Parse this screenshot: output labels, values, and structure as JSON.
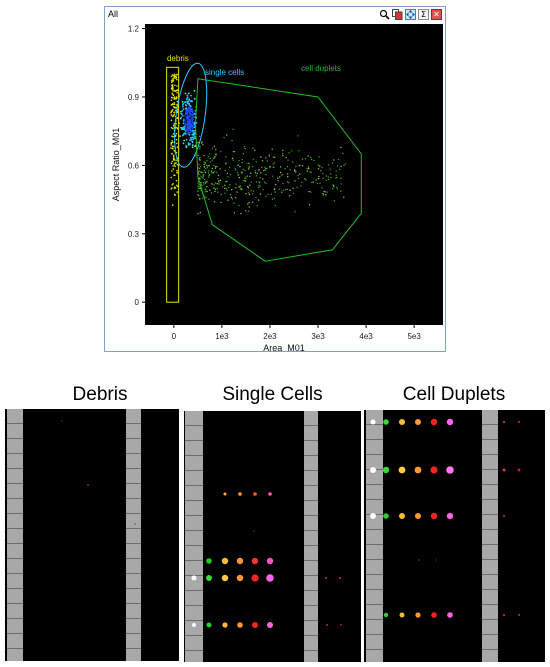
{
  "window": {
    "title": "All",
    "toolbar": [
      "zoom-icon",
      "copy-icon",
      "move-icon",
      "sigma-icon",
      "close-icon"
    ],
    "sigma_glyph": "Σ",
    "close_glyph": "✕"
  },
  "chart_data": {
    "type": "scatter",
    "xlabel": "Area_M01",
    "ylabel": "Aspect Ratio_M01",
    "x_ticks": [
      "0",
      "1e3",
      "2e3",
      "3e3",
      "4e3",
      "5e3"
    ],
    "y_ticks": [
      "1.2",
      "0.9",
      "0.6",
      "0.3",
      "0"
    ],
    "xlim": [
      -600,
      5600
    ],
    "ylim": [
      -0.1,
      1.22
    ],
    "grid": false,
    "background": "#000000",
    "gates": [
      {
        "name": "debris",
        "label": "debris",
        "color": "#e6e600",
        "shape": "rectangle",
        "x": [
          -150,
          100
        ],
        "y": [
          0,
          1.03
        ]
      },
      {
        "name": "single cells",
        "label": "single cells",
        "color": "#33ccff",
        "shape": "ellipse",
        "center": [
          350,
          0.82
        ],
        "rx": 300,
        "ry": 0.23
      },
      {
        "name": "cell duplets",
        "label": "cell duplets",
        "color": "#22bb22",
        "shape": "polygon",
        "vertices": [
          [
            500,
            0.98
          ],
          [
            3000,
            0.9
          ],
          [
            3900,
            0.65
          ],
          [
            3900,
            0.39
          ],
          [
            3300,
            0.23
          ],
          [
            1900,
            0.18
          ],
          [
            800,
            0.34
          ],
          [
            500,
            0.55
          ],
          [
            450,
            0.78
          ]
        ]
      }
    ],
    "populations": [
      {
        "name": "debris",
        "color": "#e6e600",
        "x_range": [
          -60,
          80
        ],
        "y_range": [
          0.4,
          1.0
        ],
        "count": 180
      },
      {
        "name": "single cells",
        "color": "#33ccff",
        "x_center": 320,
        "y_center": 0.8,
        "count": 260
      },
      {
        "name": "cell duplets",
        "color": "#33aa22",
        "x_range": [
          500,
          3600
        ],
        "y_range": [
          0.25,
          0.95
        ],
        "count": 420
      }
    ]
  },
  "panels": {
    "debris": {
      "title": "Debris"
    },
    "single": {
      "title": "Single Cells"
    },
    "duplets": {
      "title": "Cell Duplets"
    }
  }
}
